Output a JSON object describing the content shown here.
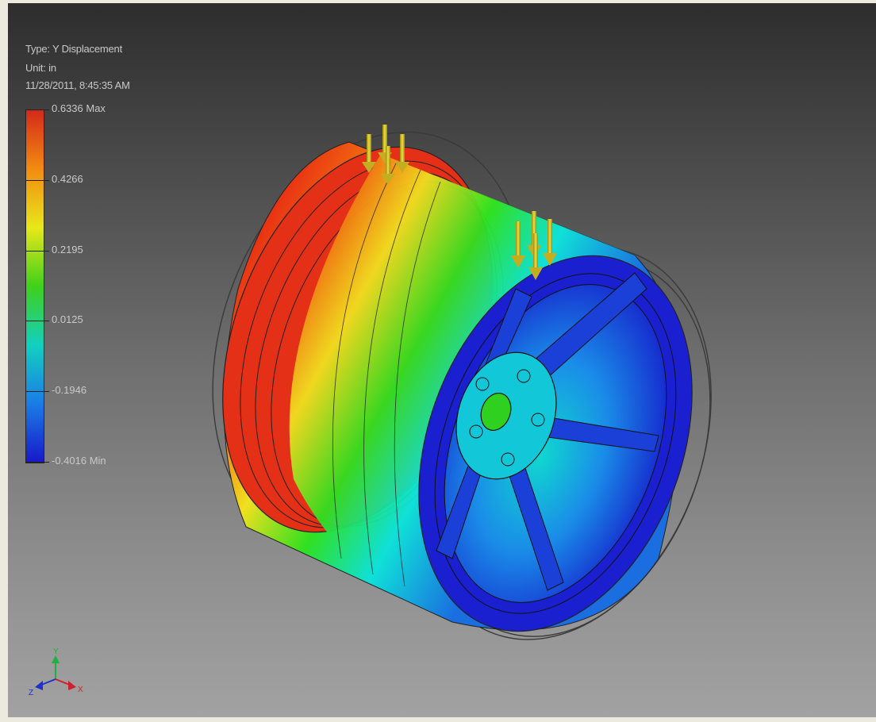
{
  "result_info": {
    "type_line": "Type: Y Displacement",
    "unit_line": "Unit: in",
    "date_line": "11/28/2011, 8:45:35 AM"
  },
  "legend": {
    "ticks": [
      {
        "label": "0.6336 Max",
        "value": 0.6336
      },
      {
        "label": "0.4266",
        "value": 0.4266
      },
      {
        "label": "0.2195",
        "value": 0.2195
      },
      {
        "label": "0.0125",
        "value": 0.0125
      },
      {
        "label": "-0.1946",
        "value": -0.1946
      },
      {
        "label": "-0.4016 Min",
        "value": -0.4016
      }
    ],
    "colors": [
      "#d32a1a",
      "#f28b10",
      "#e8e81a",
      "#3fd01a",
      "#12d0c0",
      "#1a7ce6",
      "#1818c8"
    ]
  },
  "triad": {
    "x_label": "X",
    "y_label": "Y",
    "z_label": "Z",
    "x_color": "#cc2030",
    "y_color": "#20b040",
    "z_color": "#2030cc"
  },
  "model": {
    "name_icon": "wheel-rim-model",
    "load_arrow_color": "#d8c22a"
  }
}
